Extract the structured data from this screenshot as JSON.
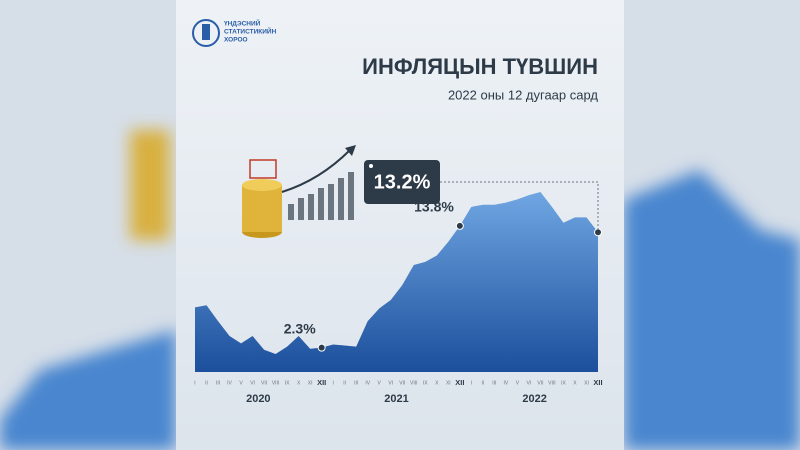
{
  "header": {
    "logo_lines": [
      "ҮНДЭСНИЙ",
      "СТАТИСТИКИЙН",
      "ХОРОО"
    ]
  },
  "chart_data": {
    "type": "area",
    "title": "ИНФЛЯЦЫН ТҮВШИН",
    "subtitle": "2022 оны 12 дугаар сард",
    "categories": [
      "I",
      "II",
      "III",
      "IV",
      "V",
      "VI",
      "VII",
      "VIII",
      "IX",
      "X",
      "XI",
      "XII",
      "I",
      "II",
      "III",
      "IV",
      "V",
      "VI",
      "VII",
      "VIII",
      "IX",
      "X",
      "XI",
      "XII",
      "I",
      "II",
      "III",
      "IV",
      "V",
      "VI",
      "VII",
      "VIII",
      "IX",
      "X",
      "XI",
      "XII"
    ],
    "years": [
      "2020",
      "2021",
      "2022"
    ],
    "values": [
      6.1,
      6.3,
      4.8,
      3.4,
      2.7,
      3.4,
      2.1,
      1.7,
      2.4,
      3.4,
      2.2,
      2.3,
      2.6,
      2.5,
      2.4,
      4.8,
      6.0,
      6.8,
      8.2,
      10.1,
      10.4,
      11.0,
      12.3,
      13.8,
      15.6,
      15.8,
      15.8,
      16.0,
      16.3,
      16.7,
      17.0,
      15.6,
      14.1,
      14.6,
      14.6,
      13.2
    ],
    "value_labels": [
      null,
      null,
      null,
      null,
      null,
      null,
      null,
      null,
      null,
      null,
      null,
      "2.3%",
      null,
      null,
      null,
      null,
      null,
      null,
      null,
      null,
      null,
      null,
      null,
      "13.8%",
      null,
      null,
      null,
      null,
      null,
      null,
      null,
      null,
      null,
      null,
      null,
      "13.2%"
    ],
    "color": "#2a67b8"
  }
}
